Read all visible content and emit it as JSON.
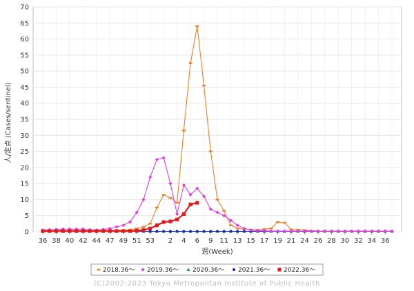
{
  "chart_data": {
    "type": "line",
    "xlabel": "週(Week)",
    "ylabel": "人/定点 (Cases/sentinel)",
    "ylim": [
      0,
      70
    ],
    "ytick_step": 5,
    "xticks": [
      "36",
      "38",
      "40",
      "42",
      "44",
      "47",
      "49",
      "51",
      "53",
      "2",
      "4",
      "6",
      "9",
      "11",
      "13",
      "15",
      "17",
      "19",
      "21",
      "24",
      "26",
      "28",
      "30",
      "32",
      "34",
      "36"
    ],
    "grid": true,
    "legend_position": "bottom",
    "copyright": "(C)2002-2023 Tokyo Metropolitan Institute of Public Health",
    "series": [
      {
        "name": "2018.36～",
        "color": "#f07f22",
        "marker": "dash",
        "values": [
          0.3,
          0.3,
          0.3,
          0.3,
          0.3,
          0.3,
          0.3,
          0.3,
          0.3,
          0.3,
          0.4,
          0.4,
          0.5,
          0.6,
          1.0,
          1.5,
          2.5,
          7.5,
          11.5,
          10.5,
          9.0,
          31.5,
          52.5,
          64.0,
          45.5,
          25.0,
          10.0,
          6.5,
          2.0,
          1.0,
          0.8,
          0.6,
          0.6,
          0.8,
          1.0,
          3.0,
          2.8,
          0.7,
          0.6,
          0.5,
          0.3,
          0.2,
          0.2,
          0.2,
          0.2,
          0.2,
          0.2,
          0.2,
          0.2,
          0.2,
          0.2,
          0.2,
          0.2
        ]
      },
      {
        "name": "2019.36～",
        "color": "#e23ee5",
        "marker": "diamond",
        "values": [
          0.5,
          0.6,
          0.7,
          0.8,
          0.8,
          0.8,
          0.8,
          0.6,
          0.5,
          0.7,
          1.0,
          1.5,
          2.0,
          3.0,
          6.0,
          10.0,
          17.0,
          22.5,
          23.0,
          15.0,
          5.5,
          14.5,
          11.5,
          13.5,
          11.0,
          7.0,
          6.0,
          5.0,
          3.5,
          2.0,
          1.0,
          0.5,
          0.3,
          0.3,
          0.2,
          0.2,
          0.2,
          0.2,
          0.2,
          0.2,
          0.2,
          0.2,
          0.2,
          0.2,
          0.2,
          0.2,
          0.2,
          0.2,
          0.2,
          0.2,
          0.2,
          0.2,
          0.2
        ]
      },
      {
        "name": "2020.36～",
        "color": "#1f9a3c",
        "marker": "triangle",
        "values": [
          0.1,
          0.1,
          0.1,
          0.1,
          0.1,
          0.1,
          0.1,
          0.1,
          0.1,
          0.1,
          0.1,
          0.1,
          0.1,
          0.1,
          0.1,
          0.1,
          0.1,
          0.1,
          0.1,
          0.1,
          0.1,
          0.1,
          0.1,
          0.1,
          0.1,
          0.1,
          0.1,
          0.1,
          0.1,
          0.1,
          0.1,
          0.1,
          0.1,
          0.1,
          0.1,
          0.1,
          0.1,
          0.1,
          0.1,
          0.1,
          0.1,
          0.1,
          0.1,
          0.1,
          0.1,
          0.1,
          0.1,
          0.1,
          0.1,
          0.1,
          0.1,
          0.1,
          0.1
        ]
      },
      {
        "name": "2021.36～",
        "color": "#1626c7",
        "marker": "circle",
        "values": [
          0.1,
          0.1,
          0.1,
          0.1,
          0.1,
          0.1,
          0.1,
          0.1,
          0.1,
          0.1,
          0.1,
          0.1,
          0.1,
          0.1,
          0.1,
          0.1,
          0.1,
          0.1,
          0.1,
          0.1,
          0.1,
          0.1,
          0.1,
          0.1,
          0.1,
          0.1,
          0.1,
          0.1,
          0.1,
          0.1,
          0.1,
          0.1,
          0.1,
          0.1,
          0.1,
          0.1,
          0.1,
          0.1,
          0.1,
          0.1,
          0.1,
          0.1,
          0.1,
          0.1,
          0.1,
          0.1,
          0.1,
          0.1,
          0.1,
          0.1,
          0.1,
          0.1,
          0.1
        ]
      },
      {
        "name": "2022.36～",
        "color": "#e01a1a",
        "marker": "square",
        "values": [
          0.2,
          0.2,
          0.2,
          0.2,
          0.2,
          0.2,
          0.2,
          0.2,
          0.2,
          0.2,
          0.2,
          0.2,
          0.2,
          0.2,
          0.3,
          0.5,
          1.0,
          2.0,
          3.0,
          3.2,
          3.8,
          5.5,
          8.5,
          9.0
        ]
      }
    ]
  }
}
